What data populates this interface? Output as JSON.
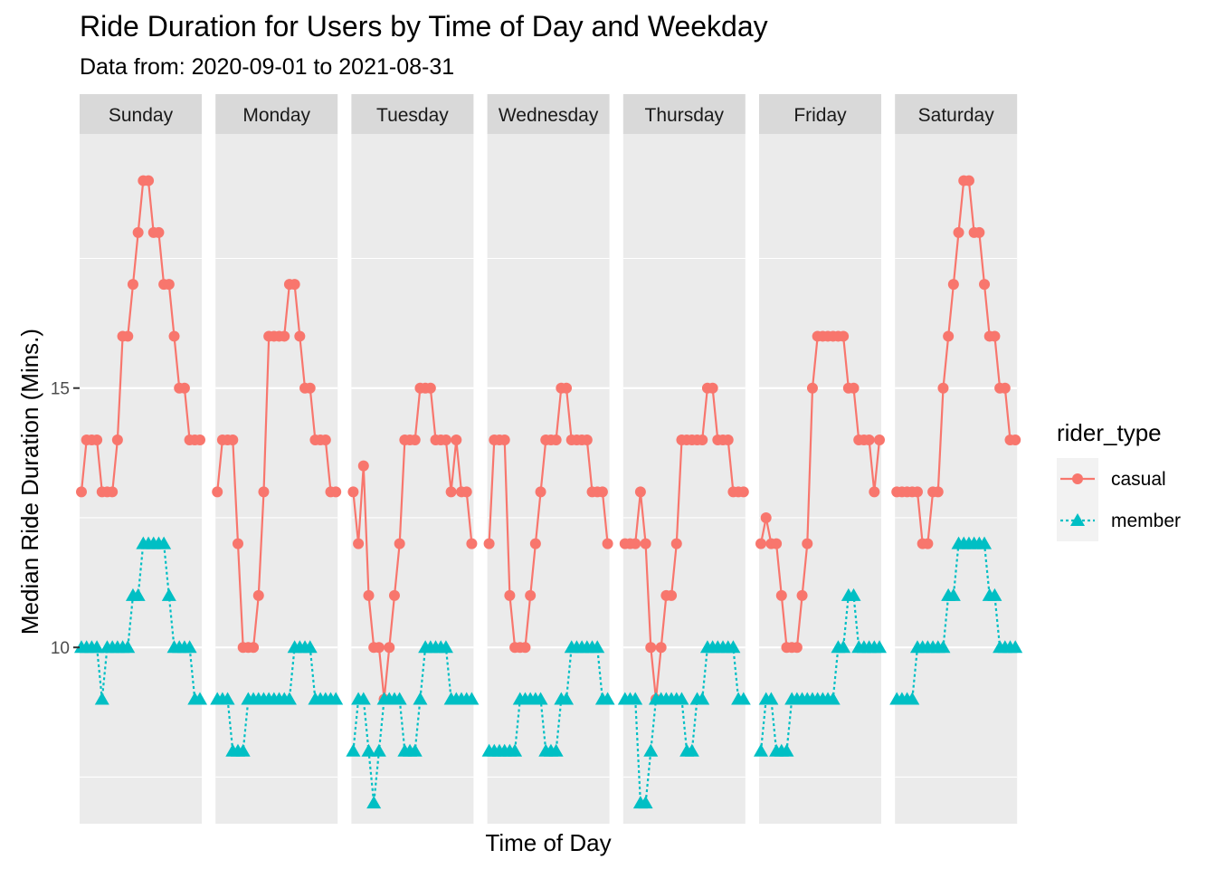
{
  "chart_data": {
    "type": "line",
    "title": "Ride Duration for Users by Time of Day and Weekday",
    "subtitle": "Data from: 2020-09-01 to 2021-08-31",
    "xlabel": "Time of Day",
    "ylabel": "Median Ride Duration (Mins.)",
    "ylim": [
      6.6,
      19.9
    ],
    "y_ticks": [
      10,
      15
    ],
    "x_hours": [
      0,
      1,
      2,
      3,
      4,
      5,
      6,
      7,
      8,
      9,
      10,
      11,
      12,
      13,
      14,
      15,
      16,
      17,
      18,
      19,
      20,
      21,
      22,
      23
    ],
    "legend_title": "rider_type",
    "legend_position": "right",
    "grid": true,
    "facets": [
      {
        "label": "Sunday",
        "series": {
          "casual": [
            13,
            14,
            14,
            14,
            13,
            13,
            13,
            14,
            16,
            16,
            17,
            18,
            19,
            19,
            18,
            18,
            17,
            17,
            16,
            15,
            15,
            14,
            14,
            14
          ],
          "member": [
            10,
            10,
            10,
            10,
            9,
            10,
            10,
            10,
            10,
            10,
            11,
            11,
            12,
            12,
            12,
            12,
            12,
            11,
            10,
            10,
            10,
            10,
            9,
            9
          ]
        }
      },
      {
        "label": "Monday",
        "series": {
          "casual": [
            13,
            14,
            14,
            14,
            12,
            10,
            10,
            10,
            11,
            13,
            16,
            16,
            16,
            16,
            17,
            17,
            16,
            15,
            15,
            14,
            14,
            14,
            13,
            13
          ],
          "member": [
            9,
            9,
            9,
            8,
            8,
            8,
            9,
            9,
            9,
            9,
            9,
            9,
            9,
            9,
            9,
            10,
            10,
            10,
            10,
            9,
            9,
            9,
            9,
            9
          ]
        }
      },
      {
        "label": "Tuesday",
        "series": {
          "casual": [
            13,
            12,
            13.5,
            11,
            10,
            10,
            9,
            10,
            11,
            12,
            14,
            14,
            14,
            15,
            15,
            15,
            14,
            14,
            14,
            13,
            14,
            13,
            13,
            12
          ],
          "member": [
            8,
            9,
            9,
            8,
            7,
            8,
            9,
            9,
            9,
            9,
            8,
            8,
            8,
            9,
            10,
            10,
            10,
            10,
            10,
            9,
            9,
            9,
            9,
            9
          ]
        }
      },
      {
        "label": "Wednesday",
        "series": {
          "casual": [
            12,
            14,
            14,
            14,
            11,
            10,
            10,
            10,
            11,
            12,
            13,
            14,
            14,
            14,
            15,
            15,
            14,
            14,
            14,
            14,
            13,
            13,
            13,
            12
          ],
          "member": [
            8,
            8,
            8,
            8,
            8,
            8,
            9,
            9,
            9,
            9,
            9,
            8,
            8,
            8,
            9,
            9,
            10,
            10,
            10,
            10,
            10,
            10,
            9,
            9
          ]
        }
      },
      {
        "label": "Thursday",
        "series": {
          "casual": [
            12,
            12,
            12,
            13,
            12,
            10,
            9,
            10,
            11,
            11,
            12,
            14,
            14,
            14,
            14,
            14,
            15,
            15,
            14,
            14,
            14,
            13,
            13,
            13
          ],
          "member": [
            9,
            9,
            9,
            7,
            7,
            8,
            9,
            9,
            9,
            9,
            9,
            9,
            8,
            8,
            9,
            9,
            10,
            10,
            10,
            10,
            10,
            10,
            9,
            9
          ]
        }
      },
      {
        "label": "Friday",
        "series": {
          "casual": [
            12,
            12.5,
            12,
            12,
            11,
            10,
            10,
            10,
            11,
            12,
            15,
            16,
            16,
            16,
            16,
            16,
            16,
            15,
            15,
            14,
            14,
            14,
            13,
            14
          ],
          "member": [
            8,
            9,
            9,
            8,
            8,
            8,
            9,
            9,
            9,
            9,
            9,
            9,
            9,
            9,
            9,
            10,
            10,
            11,
            11,
            10,
            10,
            10,
            10,
            10
          ]
        }
      },
      {
        "label": "Saturday",
        "series": {
          "casual": [
            13,
            13,
            13,
            13,
            13,
            12,
            12,
            13,
            13,
            15,
            16,
            17,
            18,
            19,
            19,
            18,
            18,
            17,
            16,
            16,
            15,
            15,
            14,
            14
          ],
          "member": [
            9,
            9,
            9,
            9,
            10,
            10,
            10,
            10,
            10,
            10,
            11,
            11,
            12,
            12,
            12,
            12,
            12,
            12,
            11,
            11,
            10,
            10,
            10,
            10
          ]
        }
      }
    ],
    "series": [
      {
        "name": "casual",
        "color": "#F8766D",
        "marker": "circle",
        "line": "solid"
      },
      {
        "name": "member",
        "color": "#00BFC4",
        "marker": "triangle",
        "line": "dotted"
      }
    ]
  }
}
